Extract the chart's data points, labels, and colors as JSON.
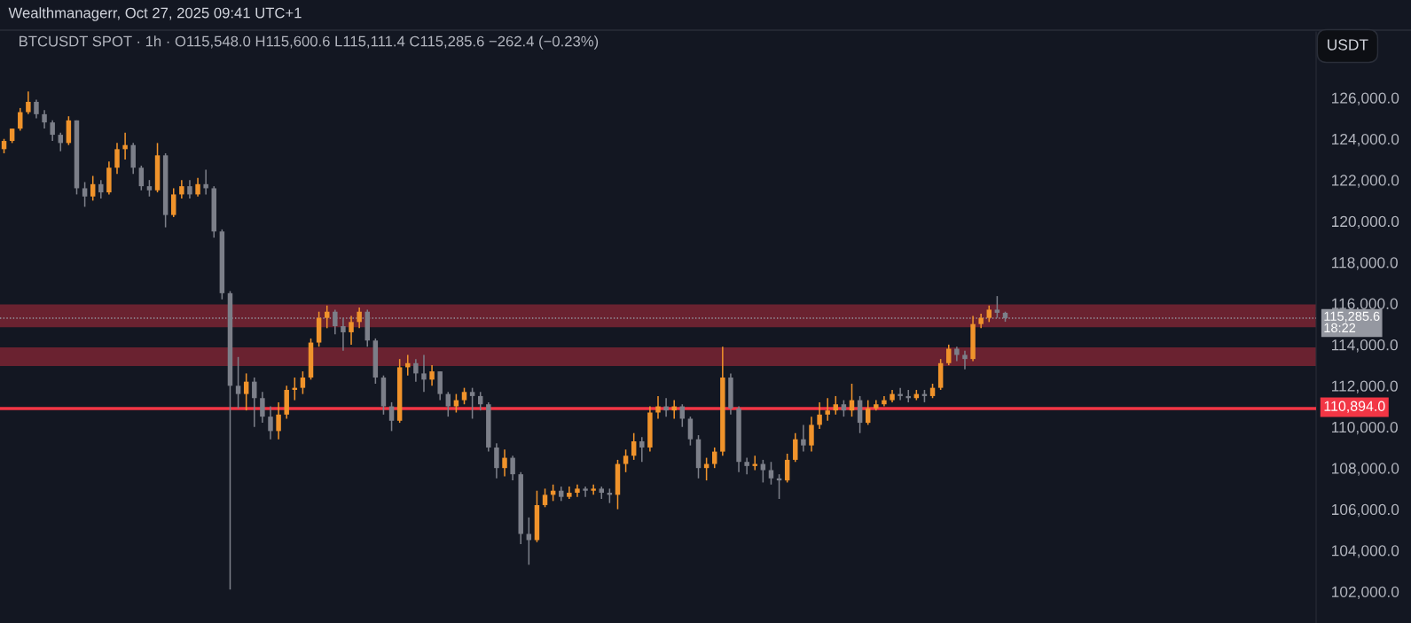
{
  "chart_data": {
    "type": "candlestick",
    "title": "BTCUSDT SPOT · 1h · O115,548.0 H115,600.6 L115,111.4 C115,285.6 −262.4 (−0.23%)",
    "annotations": [
      "Wealthmanagerr, Oct 27, 2025 09:41 UTC+1",
      "USDT"
    ],
    "categories": [
      null,
      null,
      null,
      null,
      null,
      null,
      null,
      null,
      null,
      null,
      null,
      null,
      null,
      null,
      null,
      null,
      null,
      null,
      null,
      null,
      null,
      null,
      null,
      null,
      null,
      null,
      null,
      null,
      null,
      null,
      null,
      null,
      null,
      null,
      null,
      null,
      null,
      null,
      null,
      null,
      null,
      null,
      null,
      null,
      null,
      null,
      null,
      null,
      null,
      null,
      null,
      null,
      null,
      null,
      null,
      null,
      null,
      null,
      null,
      null,
      null,
      null,
      null,
      null,
      null,
      null,
      null,
      null,
      null,
      null,
      null,
      null,
      null,
      null,
      null,
      null,
      null,
      null,
      null,
      null,
      null,
      null,
      null,
      null,
      null,
      null,
      null,
      null,
      null,
      null,
      null,
      null,
      null,
      null,
      null,
      null,
      null,
      null,
      null,
      null,
      null,
      null,
      null,
      null,
      null,
      null,
      null,
      null,
      null,
      null,
      null,
      null,
      null,
      null,
      null,
      null,
      null,
      null,
      null,
      null,
      null,
      null,
      null,
      null,
      null,
      null,
      null,
      null,
      null,
      null,
      null,
      null,
      null,
      null,
      null,
      null,
      null,
      null,
      null,
      null,
      null,
      null,
      null,
      null,
      null,
      null,
      null,
      null,
      null,
      null,
      null,
      null,
      null,
      null,
      null,
      null,
      null,
      null,
      null,
      null,
      null,
      null,
      null
    ],
    "ohlc": [
      [
        123500,
        124000,
        123300,
        123900
      ],
      [
        123900,
        124500,
        123800,
        124500
      ],
      [
        124500,
        125500,
        124400,
        125300
      ],
      [
        125300,
        126300,
        125200,
        125800
      ],
      [
        125800,
        125900,
        125000,
        125200
      ],
      [
        125200,
        125400,
        124500,
        124800
      ],
      [
        124800,
        124900,
        123900,
        124200
      ],
      [
        124200,
        124300,
        123400,
        123800
      ],
      [
        123800,
        125100,
        123700,
        124900
      ],
      [
        124900,
        124900,
        121300,
        121600
      ],
      [
        121600,
        121900,
        120700,
        121200
      ],
      [
        121200,
        122200,
        121000,
        121800
      ],
      [
        121800,
        122000,
        121100,
        121400
      ],
      [
        121400,
        122900,
        121300,
        122600
      ],
      [
        122600,
        123800,
        122300,
        123500
      ],
      [
        123500,
        124300,
        123000,
        123700
      ],
      [
        123700,
        123800,
        122300,
        122600
      ],
      [
        122600,
        122700,
        121500,
        121700
      ],
      [
        121700,
        122000,
        121200,
        121500
      ],
      [
        121500,
        123800,
        121400,
        123200
      ],
      [
        123200,
        123300,
        119700,
        120300
      ],
      [
        120300,
        121600,
        120200,
        121300
      ],
      [
        121300,
        122000,
        121100,
        121700
      ],
      [
        121700,
        122000,
        121100,
        121300
      ],
      [
        121300,
        122100,
        121200,
        121800
      ],
      [
        121800,
        122500,
        121300,
        121600
      ],
      [
        121600,
        121700,
        119200,
        119500
      ],
      [
        119500,
        119600,
        116200,
        116500
      ],
      [
        116500,
        116600,
        102100,
        112000
      ],
      [
        112000,
        113400,
        110900,
        111600
      ],
      [
        111600,
        112600,
        110800,
        112200
      ],
      [
        112200,
        112400,
        110000,
        111400
      ],
      [
        111400,
        111700,
        110200,
        110500
      ],
      [
        110500,
        111000,
        109400,
        109800
      ],
      [
        109800,
        111200,
        109400,
        110600
      ],
      [
        110600,
        112000,
        110400,
        111800
      ],
      [
        111800,
        112400,
        111300,
        111900
      ],
      [
        111900,
        112700,
        111600,
        112400
      ],
      [
        112400,
        114300,
        112300,
        114100
      ],
      [
        114100,
        115600,
        113900,
        115300
      ],
      [
        115300,
        115900,
        114800,
        115600
      ],
      [
        115600,
        115700,
        114500,
        114900
      ],
      [
        114900,
        115300,
        113700,
        114600
      ],
      [
        114600,
        115400,
        114000,
        115100
      ],
      [
        115100,
        115800,
        114800,
        115600
      ],
      [
        115600,
        115700,
        113900,
        114200
      ],
      [
        114200,
        114300,
        112100,
        112400
      ],
      [
        112400,
        112500,
        110600,
        111000
      ],
      [
        111000,
        111200,
        109800,
        110300
      ],
      [
        110300,
        113300,
        110200,
        112900
      ],
      [
        112900,
        113500,
        112500,
        113100
      ],
      [
        113100,
        113300,
        112200,
        112600
      ],
      [
        112600,
        113500,
        111700,
        112300
      ],
      [
        112300,
        113000,
        112000,
        112700
      ],
      [
        112700,
        112700,
        111300,
        111600
      ],
      [
        111600,
        111700,
        110500,
        111000
      ],
      [
        111000,
        111600,
        110700,
        111300
      ],
      [
        111300,
        111900,
        111100,
        111700
      ],
      [
        111700,
        111900,
        110400,
        111500
      ],
      [
        111500,
        111700,
        110800,
        111100
      ],
      [
        111100,
        111200,
        108800,
        109000
      ],
      [
        109000,
        109200,
        107500,
        108000
      ],
      [
        108000,
        108900,
        107600,
        108500
      ],
      [
        108500,
        108600,
        107400,
        107700
      ],
      [
        107700,
        107800,
        104300,
        104800
      ],
      [
        104800,
        105600,
        103300,
        104500
      ],
      [
        104500,
        106900,
        104400,
        106200
      ],
      [
        106200,
        107000,
        106100,
        106700
      ],
      [
        106700,
        107200,
        106400,
        106900
      ],
      [
        106900,
        107100,
        106400,
        106600
      ],
      [
        106600,
        107100,
        106500,
        106800
      ],
      [
        106800,
        107200,
        106600,
        107000
      ],
      [
        107000,
        107100,
        106600,
        106900
      ],
      [
        106900,
        107200,
        106700,
        107000
      ],
      [
        107000,
        107100,
        106500,
        106800
      ],
      [
        106800,
        107000,
        106300,
        106700
      ],
      [
        106700,
        108400,
        106000,
        108200
      ],
      [
        108200,
        108900,
        107800,
        108600
      ],
      [
        108600,
        109700,
        108400,
        109300
      ],
      [
        109300,
        109500,
        108300,
        109000
      ],
      [
        109000,
        111000,
        108800,
        110700
      ],
      [
        110700,
        111500,
        110400,
        111000
      ],
      [
        111000,
        111400,
        110500,
        110800
      ],
      [
        110800,
        111300,
        110400,
        111000
      ],
      [
        111000,
        111100,
        110000,
        110400
      ],
      [
        110400,
        110500,
        109100,
        109400
      ],
      [
        109400,
        109600,
        107500,
        108000
      ],
      [
        108000,
        108500,
        107400,
        108200
      ],
      [
        108200,
        109000,
        108000,
        108800
      ],
      [
        108800,
        113900,
        108600,
        112400
      ],
      [
        112400,
        112600,
        110600,
        110900
      ],
      [
        110900,
        111000,
        107800,
        108300
      ],
      [
        108300,
        108500,
        107700,
        108100
      ],
      [
        108100,
        108600,
        107900,
        108200
      ],
      [
        108200,
        108400,
        107300,
        107900
      ],
      [
        107900,
        108300,
        107200,
        107500
      ],
      [
        107500,
        107700,
        106500,
        107400
      ],
      [
        107400,
        108700,
        107300,
        108400
      ],
      [
        108400,
        109700,
        108300,
        109400
      ],
      [
        109400,
        110100,
        108800,
        109100
      ],
      [
        109100,
        110500,
        108800,
        110100
      ],
      [
        110100,
        111200,
        109900,
        110600
      ],
      [
        110600,
        111400,
        110300,
        110800
      ],
      [
        110800,
        111500,
        110600,
        111100
      ],
      [
        111100,
        111300,
        110500,
        110800
      ],
      [
        110800,
        112100,
        110500,
        111300
      ],
      [
        111300,
        111500,
        109700,
        110200
      ],
      [
        110200,
        111300,
        110100,
        110900
      ],
      [
        110900,
        111300,
        110800,
        111100
      ],
      [
        111100,
        111500,
        111000,
        111300
      ],
      [
        111300,
        111800,
        111200,
        111600
      ],
      [
        111600,
        111900,
        111300,
        111500
      ],
      [
        111500,
        111800,
        111200,
        111400
      ],
      [
        111400,
        111800,
        111300,
        111600
      ],
      [
        111600,
        111800,
        111200,
        111500
      ],
      [
        111500,
        112100,
        111400,
        111900
      ],
      [
        111900,
        113300,
        111800,
        113100
      ],
      [
        113100,
        114000,
        113000,
        113800
      ],
      [
        113800,
        113900,
        113200,
        113500
      ],
      [
        113500,
        113700,
        112800,
        113300
      ],
      [
        113300,
        115400,
        113200,
        115000
      ],
      [
        115000,
        115500,
        114800,
        115300
      ],
      [
        115300,
        115900,
        115100,
        115700
      ],
      [
        115700,
        116360,
        115300,
        115548
      ],
      [
        115548,
        115600.6,
        115111.4,
        115285.6
      ],
      null,
      null,
      null,
      null,
      null,
      null,
      null,
      null,
      null,
      null,
      null,
      null,
      null,
      null,
      null,
      null,
      null,
      null,
      null,
      null,
      null,
      null,
      null,
      null,
      null,
      null,
      null,
      null,
      null,
      null,
      null,
      null,
      null,
      null,
      null,
      null,
      null,
      null
    ],
    "colors": [
      "#f0932b",
      "#f0932b",
      "#f0932b",
      "#f0932b",
      "#7c7f89",
      "#7c7f89",
      "#7c7f89",
      "#7c7f89",
      "#f0932b",
      "#7c7f89",
      "#7c7f89",
      "#f0932b",
      "#7c7f89",
      "#f0932b",
      "#f0932b",
      "#f0932b",
      "#7c7f89",
      "#7c7f89",
      "#7c7f89",
      "#f0932b",
      "#7c7f89",
      "#f0932b",
      "#f0932b",
      "#7c7f89",
      "#f0932b",
      "#7c7f89",
      "#7c7f89",
      "#7c7f89",
      "#7c7f89",
      "#7c7f89",
      "#f0932b",
      "#7c7f89",
      "#7c7f89",
      "#7c7f89",
      "#f0932b",
      "#f0932b",
      "#f0932b",
      "#f0932b",
      "#f0932b",
      "#f0932b",
      "#f0932b",
      "#7c7f89",
      "#7c7f89",
      "#f0932b",
      "#f0932b",
      "#7c7f89",
      "#7c7f89",
      "#7c7f89",
      "#7c7f89",
      "#f0932b",
      "#f0932b",
      "#7c7f89",
      "#7c7f89",
      "#f0932b",
      "#7c7f89",
      "#7c7f89",
      "#f0932b",
      "#f0932b",
      "#7c7f89",
      "#7c7f89",
      "#7c7f89",
      "#7c7f89",
      "#f0932b",
      "#7c7f89",
      "#7c7f89",
      "#7c7f89",
      "#f0932b",
      "#f0932b",
      "#f0932b",
      "#7c7f89",
      "#f0932b",
      "#f0932b",
      "#7c7f89",
      "#f0932b",
      "#7c7f89",
      "#7c7f89",
      "#f0932b",
      "#f0932b",
      "#f0932b",
      "#7c7f89",
      "#f0932b",
      "#f0932b",
      "#7c7f89",
      "#f0932b",
      "#7c7f89",
      "#7c7f89",
      "#7c7f89",
      "#f0932b",
      "#f0932b",
      "#f0932b",
      "#7c7f89",
      "#7c7f89",
      "#7c7f89",
      "#f0932b",
      "#7c7f89",
      "#7c7f89",
      "#7c7f89",
      "#f0932b",
      "#f0932b",
      "#7c7f89",
      "#f0932b",
      "#f0932b",
      "#f0932b",
      "#f0932b",
      "#7c7f89",
      "#f0932b",
      "#7c7f89",
      "#f0932b",
      "#f0932b",
      "#f0932b",
      "#f0932b",
      "#7c7f89",
      "#7c7f89",
      "#f0932b",
      "#7c7f89",
      "#f0932b",
      "#f0932b",
      "#f0932b",
      "#7c7f89",
      "#7c7f89",
      "#f0932b",
      "#f0932b",
      "#f0932b",
      "#7c7f89",
      "#7c7f89",
      null,
      null,
      null,
      null,
      null,
      null,
      null,
      null,
      null,
      null,
      null,
      null,
      null,
      null,
      null,
      null,
      null,
      null,
      null,
      null,
      null,
      null,
      null,
      null,
      null,
      null,
      null,
      null,
      null,
      null,
      null,
      null,
      null,
      null,
      null,
      null,
      null,
      null
    ],
    "ylim": [
      100470,
      129200
    ],
    "yticks": [
      {
        "value": 102000,
        "label": "102,000.0"
      },
      {
        "value": 104000,
        "label": "104,000.0"
      },
      {
        "value": 106000,
        "label": "106,000.0"
      },
      {
        "value": 108000,
        "label": "108,000.0"
      },
      {
        "value": 110000,
        "label": "110,000.0"
      },
      {
        "value": 112000,
        "label": "112,000.0"
      },
      {
        "value": 114000,
        "label": "114,000.0"
      },
      {
        "value": 116000,
        "label": "116,000.0"
      },
      {
        "value": 118000,
        "label": "118,000.0"
      },
      {
        "value": 120000,
        "label": "120,000.0"
      },
      {
        "value": 122000,
        "label": "122,000.0"
      },
      {
        "value": 124000,
        "label": "124,000.0"
      },
      {
        "value": 126000,
        "label": "126,000.0"
      }
    ],
    "bands": [
      {
        "axis": "y",
        "from": 114850,
        "to": 115950,
        "color": "#7a2433"
      },
      {
        "axis": "y",
        "from": 112960,
        "to": 113870,
        "color": "#7a2433"
      }
    ],
    "ref_lines": [
      {
        "axis": "y",
        "value": 115285.6,
        "label": "115,285.6\n18:22",
        "color": "#9598a1",
        "line_style": "dotted"
      },
      {
        "axis": "y",
        "value": 110894,
        "label": "110,894.0",
        "color": "#f23645",
        "line_style": "solid"
      }
    ],
    "tick_labels": "y",
    "grid": false,
    "legend": false
  }
}
